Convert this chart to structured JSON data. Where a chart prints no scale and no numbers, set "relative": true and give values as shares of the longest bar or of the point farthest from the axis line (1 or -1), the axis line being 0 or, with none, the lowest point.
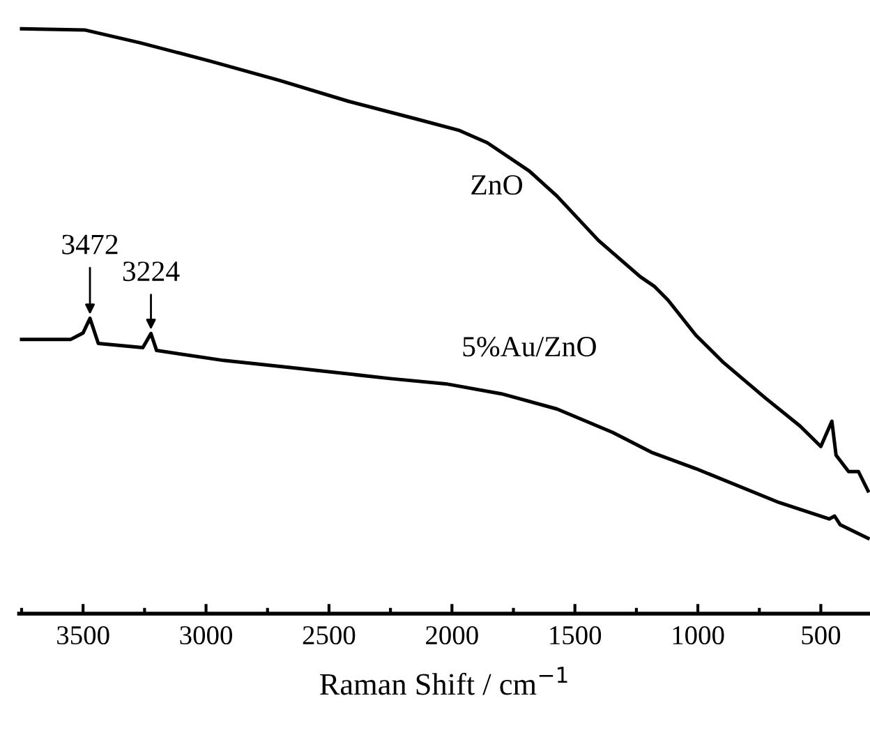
{
  "chart_data": {
    "type": "line",
    "relative": true,
    "xlabel": "Raman Shift / cm$^{−1}$",
    "xlim": [
      3760,
      300
    ],
    "xticks": [
      {
        "value": 3750,
        "label": null
      },
      3500,
      {
        "value": 3250,
        "label": null
      },
      3000,
      {
        "value": 2750,
        "label": null
      },
      2500,
      {
        "value": 2250,
        "label": null
      },
      2000,
      {
        "value": 1750,
        "label": null
      },
      1500,
      {
        "value": 1250,
        "label": null
      },
      1000,
      {
        "value": 750,
        "label": null
      },
      500
    ],
    "series": [
      {
        "name": "ZnO",
        "color": "#000000",
        "x": [
          3750,
          3494,
          3268,
          2986,
          2703,
          2421,
          2138,
          1969,
          1856,
          1686,
          1573,
          1404,
          1234,
          1178,
          1121,
          1008,
          895,
          726,
          585,
          500,
          455,
          438,
          387,
          347,
          308
        ],
        "values": [
          1.0,
          0.998,
          0.976,
          0.945,
          0.912,
          0.876,
          0.845,
          0.826,
          0.805,
          0.757,
          0.714,
          0.638,
          0.576,
          0.56,
          0.536,
          0.476,
          0.429,
          0.369,
          0.321,
          0.286,
          0.329,
          0.271,
          0.243,
          0.243,
          0.21
        ]
      },
      {
        "name": "5%Au/ZnO",
        "color": "#000000",
        "x": [
          3750,
          3550,
          3500,
          3472,
          3438,
          3257,
          3224,
          3201,
          2929,
          2658,
          2251,
          2025,
          1799,
          1573,
          1347,
          1189,
          1008,
          669,
          466,
          444,
          421,
          308
        ],
        "values": [
          0.469,
          0.469,
          0.48,
          0.505,
          0.462,
          0.455,
          0.479,
          0.45,
          0.433,
          0.421,
          0.402,
          0.393,
          0.376,
          0.35,
          0.31,
          0.276,
          0.248,
          0.19,
          0.162,
          0.167,
          0.152,
          0.129
        ]
      }
    ],
    "annotations": [
      {
        "text": "3472",
        "x": 3472,
        "y": 0.505
      },
      {
        "text": "3224",
        "x": 3224,
        "y": 0.479
      }
    ],
    "legend": false,
    "grid": false,
    "marker": "none",
    "line_style": "solid",
    "tick_labels": "x"
  }
}
